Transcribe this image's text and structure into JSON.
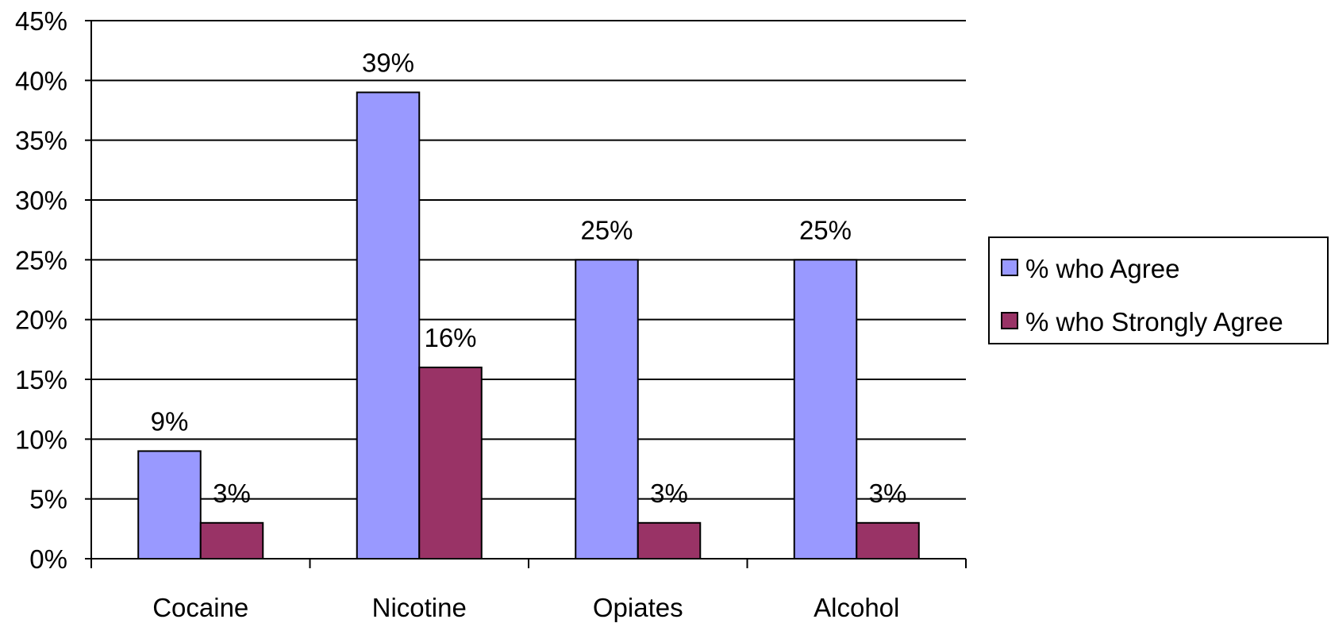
{
  "chart_data": {
    "type": "bar",
    "title": "",
    "xlabel": "",
    "ylabel": "",
    "categories": [
      "Cocaine",
      "Nicotine",
      "Opiates",
      "Alcohol"
    ],
    "series": [
      {
        "name": "% who Agree",
        "values": [
          9,
          39,
          25,
          25
        ],
        "color": "#9999ff",
        "value_labels": [
          "9%",
          "39%",
          "25%",
          "25%"
        ]
      },
      {
        "name": "% who Strongly Agree",
        "values": [
          3,
          16,
          3,
          3
        ],
        "color": "#993366",
        "value_labels": [
          "3%",
          "16%",
          "3%",
          "3%"
        ]
      }
    ],
    "ylim": [
      0,
      45
    ],
    "yticks": [
      0,
      5,
      10,
      15,
      20,
      25,
      30,
      35,
      40,
      45
    ],
    "ytick_labels": [
      "0%",
      "5%",
      "10%",
      "15%",
      "20%",
      "25%",
      "30%",
      "35%",
      "40%",
      "45%"
    ],
    "grid": true,
    "legend_position": "right"
  }
}
